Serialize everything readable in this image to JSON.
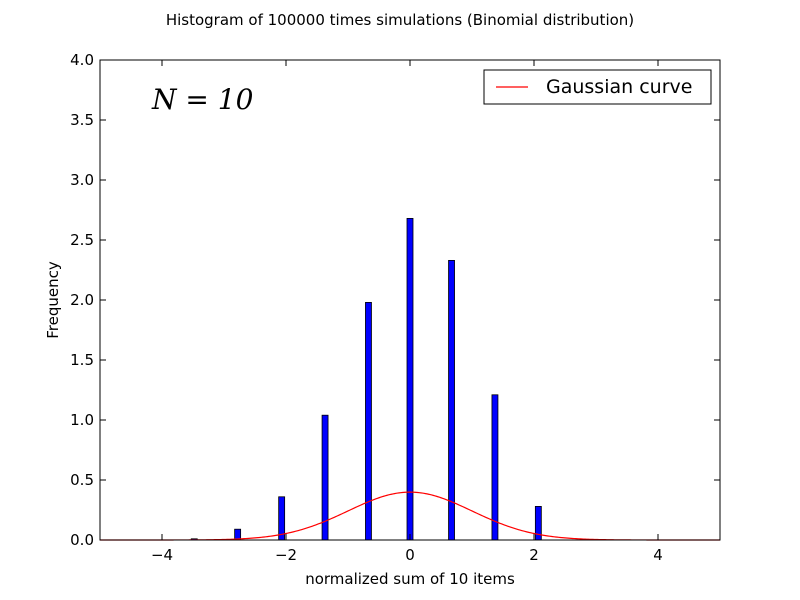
{
  "chart_data": {
    "type": "bar",
    "title": "Histogram of 100000 times simulations (Binomial distribution)",
    "xlabel": "normalized sum of 10 items",
    "ylabel": "Frequency",
    "xlim": [
      -5,
      5
    ],
    "ylim": [
      0,
      4
    ],
    "x_ticks": [
      -4,
      -2,
      0,
      2,
      4
    ],
    "x_tick_labels": [
      "−4",
      "−2",
      "0",
      "2",
      "4"
    ],
    "y_ticks": [
      0,
      0.5,
      1,
      1.5,
      2,
      2.5,
      3,
      3.5,
      4
    ],
    "y_tick_labels": [
      "0.0",
      "0.5",
      "1.0",
      "1.5",
      "2.0",
      "2.5",
      "3.0",
      "3.5",
      "4.0"
    ],
    "grid": false,
    "legend": {
      "placement": "top-right",
      "entries": [
        "Gaussian curve"
      ]
    },
    "annotation": "N = 10",
    "bar_color": "#0000ff",
    "curve_color": "#ff0000",
    "bars": {
      "x": [
        -3.48,
        -2.78,
        -2.07,
        -1.37,
        -0.67,
        0.0,
        0.67,
        1.37,
        2.07
      ],
      "values": [
        0.01,
        0.09,
        0.36,
        1.04,
        1.98,
        2.68,
        2.33,
        1.21,
        0.28
      ]
    },
    "series": [
      {
        "name": "Gaussian curve",
        "type": "line",
        "function": "standard normal pdf",
        "x_range": [
          -5,
          5
        ]
      }
    ]
  }
}
